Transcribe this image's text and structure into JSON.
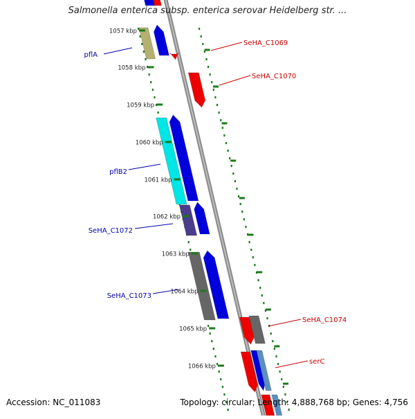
{
  "title": "Salmonella enterica subsp. enterica serovar Heidelberg str. ...",
  "footer": {
    "accession": "Accession: NC_011083",
    "summary": "Topology: circular; Length: 4,888,768 bp; Genes: 4,756"
  },
  "ticks": [
    "1057 kbp",
    "1058 kbp",
    "1059 kbp",
    "1060 kbp",
    "1061 kbp",
    "1062 kbp",
    "1063 kbp",
    "1064 kbp",
    "1065 kbp",
    "1066 kbp"
  ],
  "gene_labels": {
    "left": [
      "pflA",
      "pflB2",
      "SeHA_C1072",
      "SeHA_C1073"
    ],
    "right": [
      "SeHA_C1069",
      "SeHA_C1070",
      "SeHA_C1074",
      "serC"
    ]
  },
  "colors": {
    "cog_blue": "#0000dd",
    "cog_red": "#ee0000",
    "cog_olive": "#b5b070",
    "cog_cyan": "#00e5e5",
    "cog_purple": "#4b3c8c",
    "cog_gray": "#666666",
    "cog_steel": "#5a8fc0",
    "label_left": "#0000aa",
    "label_right": "#cc0000",
    "tick_green": "#1a7a1a",
    "backbone": "#8a8a8a"
  }
}
